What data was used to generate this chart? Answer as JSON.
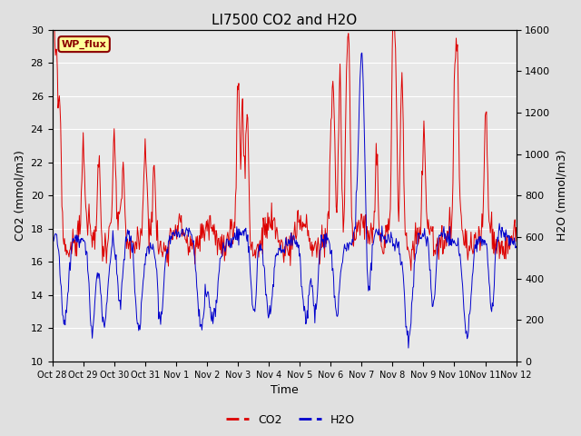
{
  "title": "LI7500 CO2 and H2O",
  "ylabel_left": "CO2 (mmol/m3)",
  "ylabel_right": "H2O (mmol/m3)",
  "xlabel": "Time",
  "ylim_left": [
    10,
    30
  ],
  "ylim_right": [
    0,
    1600
  ],
  "yticks_left": [
    10,
    12,
    14,
    16,
    18,
    20,
    22,
    24,
    26,
    28,
    30
  ],
  "yticks_right": [
    0,
    200,
    400,
    600,
    800,
    1000,
    1200,
    1400,
    1600
  ],
  "xtick_labels": [
    "Oct 28",
    "Oct 29",
    "Oct 30",
    "Oct 31",
    "Nov 1",
    "Nov 2",
    "Nov 3",
    "Nov 4",
    "Nov 5",
    "Nov 6",
    "Nov 7",
    "Nov 8",
    "Nov 9",
    "Nov 10",
    "Nov 11",
    "Nov 12"
  ],
  "fig_bg": "#e0e0e0",
  "plot_bg": "#e8e8e8",
  "co2_color": "#dd0000",
  "h2o_color": "#0000cc",
  "grid_color": "#ffffff",
  "annotation_text": "WP_flux",
  "annotation_bg": "#ffff99",
  "annotation_edge": "#8b0000",
  "legend_co2": "CO2",
  "legend_h2o": "H2O",
  "n_days": 15
}
